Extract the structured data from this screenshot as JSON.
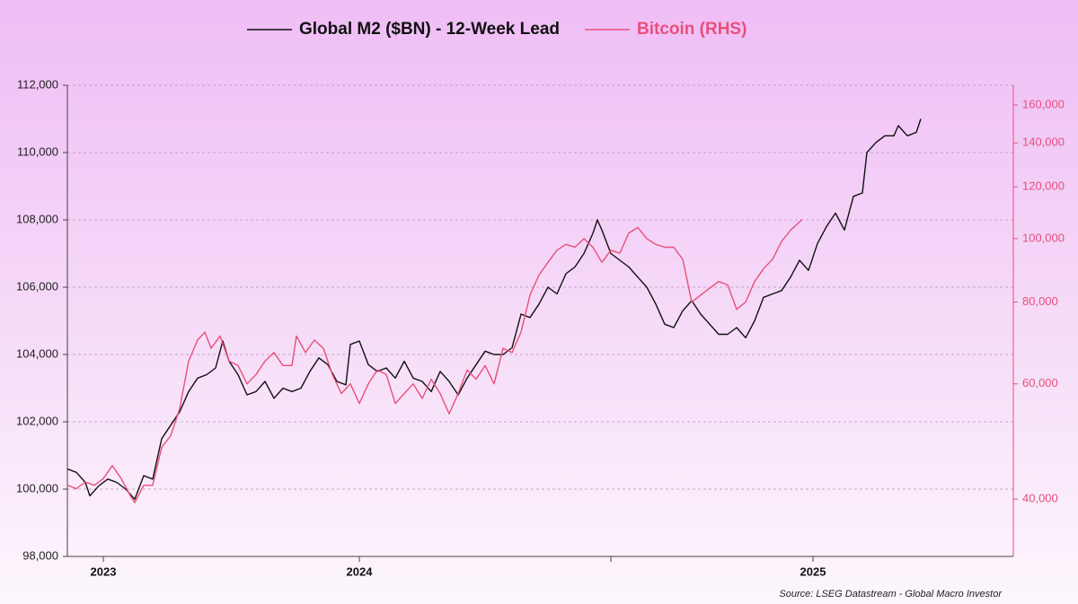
{
  "chart_data": {
    "type": "line",
    "source": "Source: LSEG Datastream - Global Macro Investor",
    "xlim": [
      0,
      1053
    ],
    "xticks": [
      {
        "value": 40,
        "label": "2023"
      },
      {
        "value": 325,
        "label": "2024"
      },
      {
        "value": 830,
        "label": "2025"
      }
    ],
    "xticks_minor": [
      605
    ],
    "ylim": [
      98000,
      112000
    ],
    "yticks": [
      {
        "value": 98000,
        "label": "98,000"
      },
      {
        "value": 100000,
        "label": "100,000"
      },
      {
        "value": 102000,
        "label": "102,000"
      },
      {
        "value": 104000,
        "label": "104,000"
      },
      {
        "value": 106000,
        "label": "106,000"
      },
      {
        "value": 108000,
        "label": "108,000"
      },
      {
        "value": 110000,
        "label": "110,000"
      },
      {
        "value": 112000,
        "label": "112,000"
      }
    ],
    "y2lim": [
      32700,
      171500
    ],
    "y2log": true,
    "y2ticks": [
      {
        "value": 40000,
        "label": "40,000"
      },
      {
        "value": 60000,
        "label": "60,000"
      },
      {
        "value": 80000,
        "label": "80,000"
      },
      {
        "value": 100000,
        "label": "100,000"
      },
      {
        "value": 120000,
        "label": "120,000"
      },
      {
        "value": 140000,
        "label": "140,000"
      },
      {
        "value": 160000,
        "label": "160,000"
      }
    ],
    "grid": true,
    "series": [
      {
        "name": "Global M2 ($BN) - 12-Week Lead",
        "color": "#111111",
        "x": [
          0,
          10,
          20,
          25,
          35,
          45,
          55,
          65,
          75,
          85,
          95,
          105,
          115,
          125,
          135,
          145,
          155,
          165,
          173,
          180,
          190,
          200,
          210,
          220,
          230,
          240,
          250,
          260,
          270,
          280,
          290,
          300,
          310,
          315,
          325,
          335,
          345,
          355,
          365,
          375,
          385,
          395,
          405,
          415,
          425,
          435,
          445,
          455,
          465,
          475,
          485,
          495,
          505,
          515,
          525,
          535,
          545,
          555,
          565,
          575,
          585,
          590,
          595,
          605,
          615,
          625,
          635,
          645,
          655,
          665,
          675,
          685,
          695,
          705,
          715,
          725,
          735,
          745,
          755,
          765,
          775,
          785,
          795,
          805,
          815,
          825,
          835,
          845,
          855,
          865,
          875,
          885,
          890,
          900,
          910,
          920,
          925,
          935,
          945,
          950
        ],
        "values": [
          100600,
          100500,
          100200,
          99800,
          100100,
          100300,
          100200,
          100000,
          99700,
          100400,
          100300,
          101500,
          101900,
          102300,
          102900,
          103300,
          103400,
          103600,
          104400,
          103800,
          103400,
          102800,
          102900,
          103200,
          102700,
          103000,
          102900,
          103000,
          103500,
          103900,
          103700,
          103200,
          103100,
          104300,
          104400,
          103700,
          103500,
          103600,
          103300,
          103800,
          103300,
          103200,
          102900,
          103500,
          103200,
          102800,
          103300,
          103700,
          104100,
          104000,
          104000,
          104200,
          105200,
          105100,
          105500,
          106000,
          105800,
          106400,
          106600,
          107000,
          107600,
          108000,
          107700,
          107000,
          106800,
          106600,
          106300,
          106000,
          105500,
          104900,
          104800,
          105300,
          105600,
          105200,
          104900,
          104600,
          104600,
          104800,
          104500,
          105000,
          105700,
          105800,
          105900,
          106300,
          106800,
          106500,
          107300,
          107800,
          108200,
          107700,
          108700,
          108800,
          110000,
          110300,
          110500,
          110500,
          110800,
          110500,
          110600,
          111000
        ]
      },
      {
        "name": "Bitcoin (RHS)",
        "color": "#e8507a",
        "axis": "y2",
        "x": [
          0,
          10,
          20,
          30,
          40,
          50,
          60,
          70,
          75,
          85,
          95,
          105,
          115,
          125,
          135,
          145,
          153,
          160,
          170,
          180,
          190,
          200,
          210,
          220,
          230,
          240,
          250,
          255,
          265,
          275,
          285,
          295,
          305,
          315,
          325,
          335,
          345,
          355,
          365,
          375,
          385,
          395,
          405,
          415,
          425,
          435,
          445,
          455,
          465,
          475,
          485,
          495,
          505,
          515,
          525,
          535,
          545,
          555,
          565,
          575,
          585,
          595,
          605,
          615,
          625,
          635,
          645,
          655,
          665,
          675,
          685,
          695,
          705,
          715,
          725,
          735,
          745,
          755,
          765,
          775,
          785,
          795,
          805,
          818
        ],
        "values": [
          42000,
          41500,
          42500,
          42000,
          43000,
          45000,
          43000,
          40500,
          39500,
          42000,
          42000,
          48000,
          50000,
          55000,
          65000,
          70000,
          72000,
          68000,
          71000,
          65000,
          64000,
          60000,
          62000,
          65000,
          67000,
          64000,
          64000,
          71000,
          67000,
          70000,
          68000,
          62000,
          58000,
          60000,
          56000,
          60000,
          63000,
          62000,
          56000,
          58000,
          60000,
          57000,
          61000,
          58000,
          54000,
          58000,
          63000,
          61000,
          64000,
          60000,
          68000,
          67000,
          72000,
          82000,
          88000,
          92000,
          96000,
          98000,
          97000,
          100000,
          97000,
          92000,
          96000,
          95000,
          102000,
          104000,
          100000,
          98000,
          97000,
          97000,
          93000,
          80000,
          82000,
          84000,
          86000,
          85000,
          78000,
          80000,
          86000,
          90000,
          93000,
          99000,
          103000,
          107000
        ]
      }
    ]
  }
}
